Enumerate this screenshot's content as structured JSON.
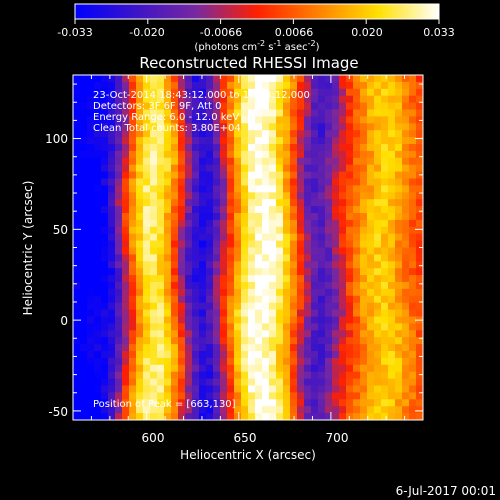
{
  "chart_data": {
    "type": "heatmap",
    "title": "Reconstructed RHESSI Image",
    "xlabel": "Heliocentric X (arcsec)",
    "ylabel": "Heliocentric Y (arcsec)",
    "xlim": [
      560,
      750
    ],
    "ylim": [
      -55,
      135
    ],
    "xticks": [
      600,
      650,
      700
    ],
    "yticks": [
      -50,
      0,
      50,
      100
    ],
    "grid": false,
    "colorbar": {
      "position": "top",
      "min": -0.033,
      "max": 0.033,
      "ticks": [
        "-0.033",
        "-0.020",
        "-0.0066",
        "0.0066",
        "0.020",
        "0.033"
      ],
      "label_parts": [
        "(photons cm",
        "-2",
        " s",
        "-1",
        " asec",
        "-2",
        ")"
      ],
      "stops": [
        "#0000ff",
        "#3c14c8",
        "#7828a0",
        "#ff2000",
        "#ff8000",
        "#ffe000",
        "#ffffff"
      ]
    },
    "annotations": [
      "23-Oct-2014 18:43:12.000 to 18:53:12.000",
      "Detectors: 3F 6F 9F, Att 0",
      "Energy Range: 6.0 - 12.0 keV",
      "Clean    Total counts: 3.80E+04"
    ],
    "peak_label": "Position of Peak = [663,130]",
    "ridges": [
      {
        "x": 562,
        "w": 10,
        "amp": -0.033
      },
      {
        "x": 580,
        "w": 9,
        "amp": -0.025
      },
      {
        "x": 603,
        "w": 12,
        "amp": 0.028
      },
      {
        "x": 630,
        "w": 9,
        "amp": -0.03
      },
      {
        "x": 663,
        "w": 13,
        "amp": 0.033
      },
      {
        "x": 693,
        "w": 8,
        "amp": -0.022
      },
      {
        "x": 728,
        "w": 12,
        "amp": 0.02
      }
    ]
  },
  "footer": {
    "date": "6-Jul-2017 00:01"
  }
}
